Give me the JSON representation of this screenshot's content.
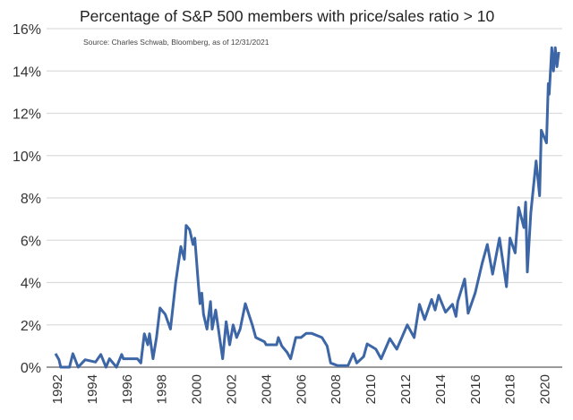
{
  "chart_data": {
    "type": "line",
    "title": "Percentage of S&P 500 members with price/sales ratio > 10",
    "subtitle": "Source: Charles Schwab, Bloomberg, as of 12/31/2021",
    "xlabel": "",
    "ylabel": "",
    "xlim": [
      1992,
      2021
    ],
    "ylim": [
      0,
      16
    ],
    "grid": true,
    "line_color": "#3d66a6",
    "x_ticks": [
      "1992",
      "1994",
      "1996",
      "1998",
      "2000",
      "2002",
      "2004",
      "2006",
      "2008",
      "2010",
      "2012",
      "2014",
      "2016",
      "2018",
      "2020"
    ],
    "y_ticks": [
      "0%",
      "2%",
      "4%",
      "6%",
      "8%",
      "10%",
      "12%",
      "14%",
      "16%"
    ],
    "series": [
      {
        "x": [
          1992.0,
          1992.2,
          1992.3,
          1992.8,
          1993.0,
          1993.3,
          1993.7,
          1994.3,
          1994.6,
          1994.9,
          1995.1,
          1995.5,
          1995.8,
          1995.9,
          1996.7,
          1996.9,
          1997.1,
          1997.3,
          1997.4,
          1997.6,
          1997.8,
          1998.0,
          1998.3,
          1998.6,
          1998.9,
          1999.2,
          1999.4,
          1999.5,
          1999.7,
          1999.9,
          2000.0,
          2000.2,
          2000.3,
          2000.4,
          2000.5,
          2000.7,
          2000.9,
          2001.0,
          2001.2,
          2001.6,
          2001.8,
          2002.0,
          2002.2,
          2002.4,
          2002.6,
          2002.9,
          2003.3,
          2003.5,
          2004.0,
          2004.1,
          2004.7,
          2004.8,
          2005.0,
          2005.3,
          2005.5,
          2005.8,
          2006.1,
          2006.4,
          2006.7,
          2007.3,
          2007.6,
          2007.8,
          2008.2,
          2008.8,
          2009.1,
          2009.3,
          2009.7,
          2009.9,
          2010.4,
          2010.7,
          2011.2,
          2011.6,
          2012.2,
          2012.6,
          2012.9,
          2013.2,
          2013.6,
          2013.8,
          2014.0,
          2014.4,
          2014.8,
          2015.0,
          2015.1,
          2015.5,
          2015.7,
          2016.1,
          2016.5,
          2016.8,
          2017.1,
          2017.5,
          2017.9,
          2018.1,
          2018.4,
          2018.6,
          2018.9,
          2019.0,
          2019.1,
          2019.3,
          2019.6,
          2019.8,
          2019.9,
          2020.2,
          2020.3,
          2020.35,
          2020.5,
          2020.6,
          2020.7,
          2020.8,
          2020.9
        ],
        "values": [
          0.64,
          0.35,
          0,
          0,
          0.64,
          0,
          0.35,
          0.24,
          0.6,
          0,
          0.4,
          0,
          0.6,
          0.4,
          0.4,
          0.2,
          1.58,
          1.06,
          1.58,
          0.4,
          1.4,
          2.8,
          2.5,
          1.8,
          4.0,
          5.7,
          5.1,
          6.7,
          6.5,
          5.8,
          6.1,
          3.95,
          3.0,
          3.5,
          2.5,
          1.8,
          3.1,
          1.8,
          2.7,
          0.4,
          2.15,
          1.06,
          2.0,
          1.4,
          1.8,
          3.0,
          2.0,
          1.4,
          1.2,
          1.06,
          1.06,
          1.4,
          1.0,
          0.7,
          0.4,
          1.4,
          1.4,
          1.6,
          1.6,
          1.4,
          1.0,
          0.2,
          0.07,
          0.07,
          0.64,
          0.2,
          0.5,
          1.1,
          0.85,
          0.4,
          1.35,
          0.85,
          2.0,
          1.4,
          2.97,
          2.25,
          3.2,
          2.7,
          3.4,
          2.6,
          2.97,
          2.4,
          3.1,
          4.17,
          2.55,
          3.5,
          4.9,
          5.8,
          4.4,
          6.1,
          3.8,
          6.1,
          5.4,
          7.55,
          6.6,
          7.8,
          4.5,
          7.3,
          9.75,
          8.1,
          11.2,
          10.6,
          13.4,
          12.9,
          15.1,
          14.0,
          15.1,
          14.2,
          14.9
        ]
      }
    ]
  }
}
